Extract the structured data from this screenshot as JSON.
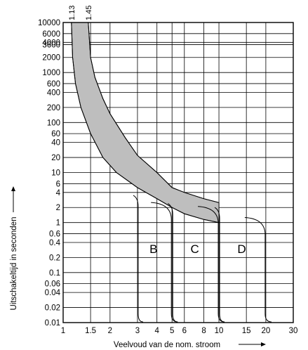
{
  "chart_data": {
    "type": "line",
    "xlabel": "Veelvoud van de nom. stroom",
    "ylabel": "Uitschakeltijd in seconden",
    "xscale": "log",
    "yscale": "log",
    "xlim": [
      1,
      30
    ],
    "ylim": [
      0.01,
      10000
    ],
    "grid": true,
    "x_ticks": [
      "1",
      "1.5",
      "2",
      "3",
      "4",
      "5",
      "6",
      "8",
      "10",
      "15",
      "20",
      "30"
    ],
    "x_tick_values": [
      1,
      1.5,
      2,
      3,
      4,
      5,
      6,
      8,
      10,
      15,
      20,
      30
    ],
    "y_ticks": [
      "10000",
      "6000",
      "4000",
      "3600",
      "2000",
      "1000",
      "600",
      "400",
      "200",
      "100",
      "60",
      "40",
      "20",
      "10",
      "6",
      "4",
      "2",
      "1",
      "0.6",
      "0.4",
      "0.2",
      "0.1",
      "0.06",
      "0.04",
      "0.02",
      "0.01"
    ],
    "y_tick_values": [
      10000,
      6000,
      4000,
      3600,
      2000,
      1000,
      600,
      400,
      200,
      100,
      60,
      40,
      20,
      10,
      6,
      4,
      2,
      1,
      0.6,
      0.4,
      0.2,
      0.1,
      0.06,
      0.04,
      0.02,
      0.01
    ],
    "top_labels": [
      "1.13",
      "1.45"
    ],
    "band": {
      "lower": [
        [
          1.13,
          10000
        ],
        [
          1.15,
          2000
        ],
        [
          1.2,
          600
        ],
        [
          1.3,
          200
        ],
        [
          1.5,
          60
        ],
        [
          1.8,
          20
        ],
        [
          2.2,
          10
        ],
        [
          3,
          5
        ],
        [
          4,
          3
        ],
        [
          5,
          2
        ],
        [
          6,
          1.5
        ],
        [
          8,
          1.15
        ],
        [
          10,
          1
        ]
      ],
      "upper": [
        [
          1.45,
          10000
        ],
        [
          1.5,
          2000
        ],
        [
          1.6,
          800
        ],
        [
          1.8,
          300
        ],
        [
          2.0,
          150
        ],
        [
          2.5,
          50
        ],
        [
          3,
          22
        ],
        [
          4,
          10
        ],
        [
          5,
          5
        ],
        [
          6,
          4
        ],
        [
          8,
          3
        ],
        [
          10,
          2.5
        ]
      ]
    },
    "zones": [
      {
        "name": "B",
        "instant_min": 3,
        "instant_max": 5,
        "label_x": 3.8,
        "label_y": 0.3
      },
      {
        "name": "C",
        "instant_min": 5,
        "instant_max": 10,
        "label_x": 7,
        "label_y": 0.3
      },
      {
        "name": "D",
        "instant_min": 10,
        "instant_max": 20,
        "label_x": 14,
        "label_y": 0.3
      }
    ],
    "zone_curve": [
      [
        3,
        3.5
      ],
      [
        5,
        2.4
      ],
      [
        10,
        2
      ],
      [
        15,
        1.5
      ],
      [
        20,
        1.2
      ]
    ],
    "colors": {
      "band": "#bebebe",
      "line": "#000000",
      "grid": "#000000"
    }
  }
}
